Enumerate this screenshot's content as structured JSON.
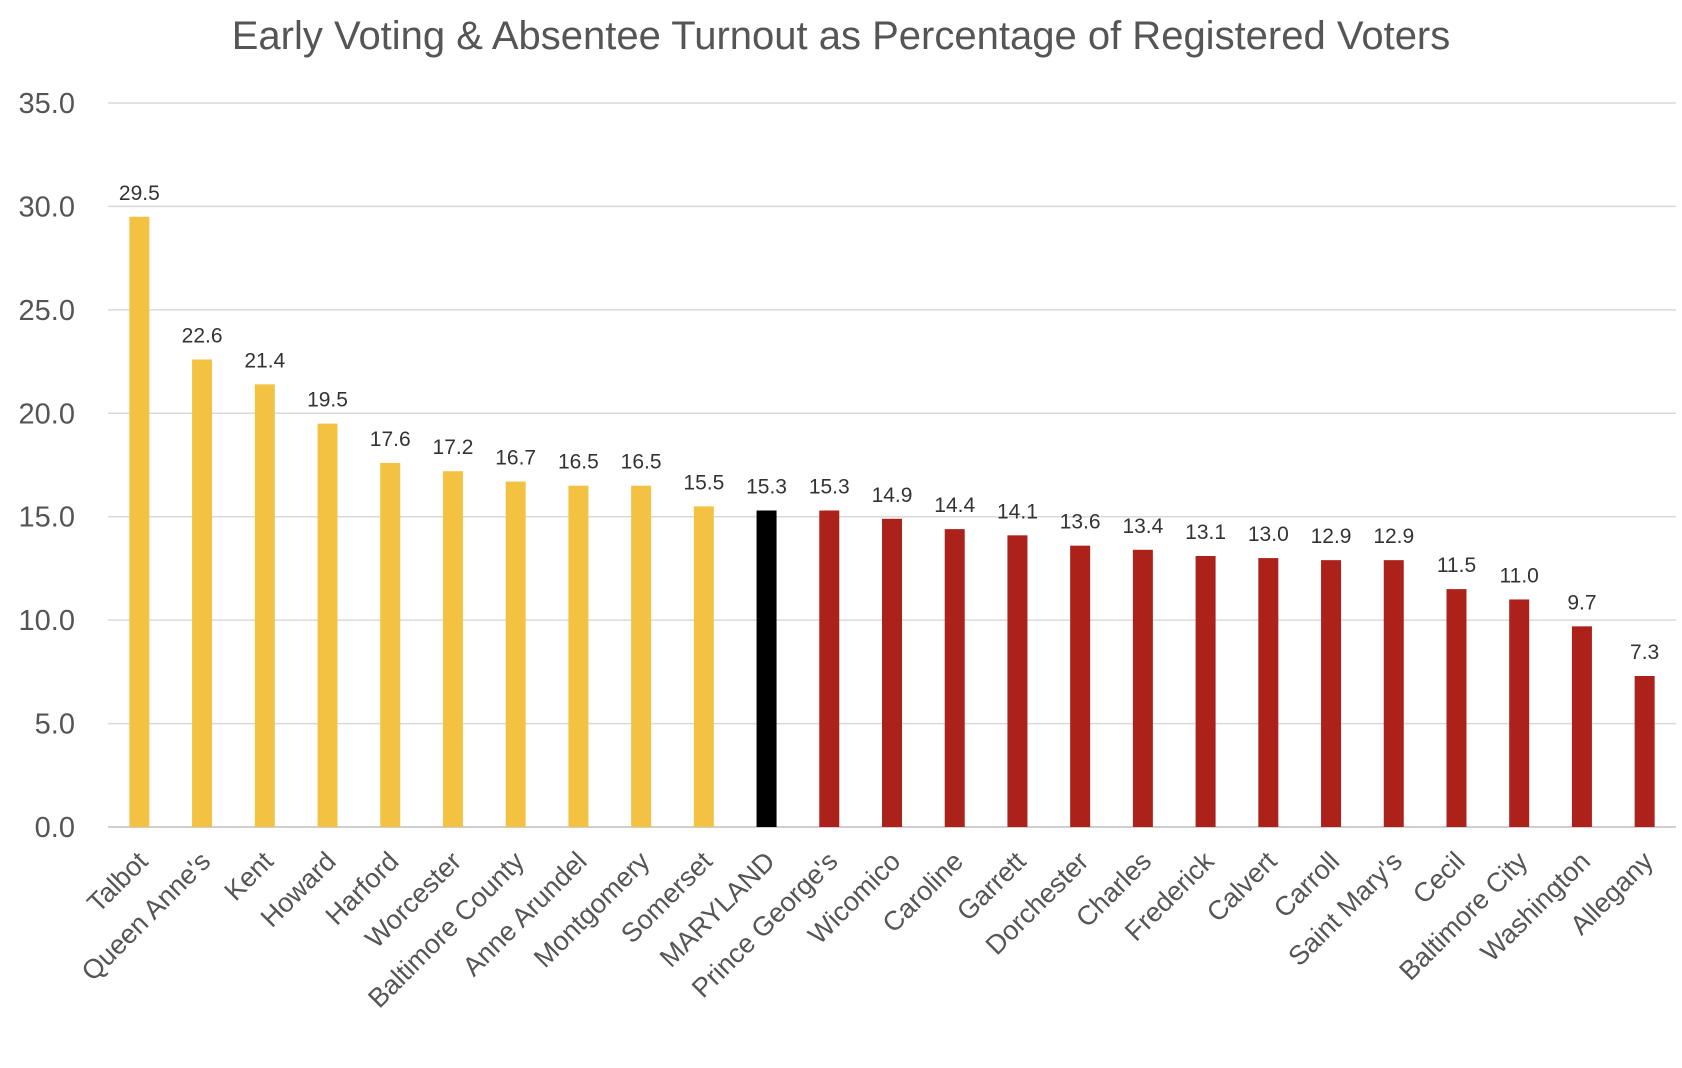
{
  "chart_data": {
    "type": "bar",
    "title": "Early Voting & Absentee Turnout as Percentage of Registered Voters",
    "xlabel": "",
    "ylabel": "",
    "ylim": [
      0,
      35
    ],
    "yticks": [
      "0.0",
      "5.0",
      "10.0",
      "15.0",
      "20.0",
      "25.0",
      "30.0",
      "35.0"
    ],
    "grid": true,
    "legend": "none",
    "categories": [
      "Talbot",
      "Queen Anne's",
      "Kent",
      "Howard",
      "Harford",
      "Worcester",
      "Baltimore County",
      "Anne Arundel",
      "Montgomery",
      "Somerset",
      "MARYLAND",
      "Prince George's",
      "Wicomico",
      "Caroline",
      "Garrett",
      "Dorchester",
      "Charles",
      "Frederick",
      "Calvert",
      "Carroll",
      "Saint Mary's",
      "Cecil",
      "Baltimore City",
      "Washington",
      "Allegany"
    ],
    "values": [
      29.5,
      22.6,
      21.4,
      19.5,
      17.6,
      17.2,
      16.7,
      16.5,
      16.5,
      15.5,
      15.3,
      15.3,
      14.9,
      14.4,
      14.1,
      13.6,
      13.4,
      13.1,
      13.0,
      12.9,
      12.9,
      11.5,
      11.0,
      9.7,
      7.3
    ],
    "data_labels": [
      "29.5",
      "22.6",
      "21.4",
      "19.5",
      "17.6",
      "17.2",
      "16.7",
      "16.5",
      "16.5",
      "15.5",
      "15.3",
      "15.3",
      "14.9",
      "14.4",
      "14.1",
      "13.6",
      "13.4",
      "13.1",
      "13.0",
      "12.9",
      "12.9",
      "11.5",
      "11.0",
      "9.7",
      "7.3"
    ],
    "bar_colors": [
      "#F3C243",
      "#F3C243",
      "#F3C243",
      "#F3C243",
      "#F3C243",
      "#F3C243",
      "#F3C243",
      "#F3C243",
      "#F3C243",
      "#F3C243",
      "#000000",
      "#AC2119",
      "#AC2119",
      "#AC2119",
      "#AC2119",
      "#AC2119",
      "#AC2119",
      "#AC2119",
      "#AC2119",
      "#AC2119",
      "#AC2119",
      "#AC2119",
      "#AC2119",
      "#AC2119",
      "#AC2119"
    ]
  }
}
